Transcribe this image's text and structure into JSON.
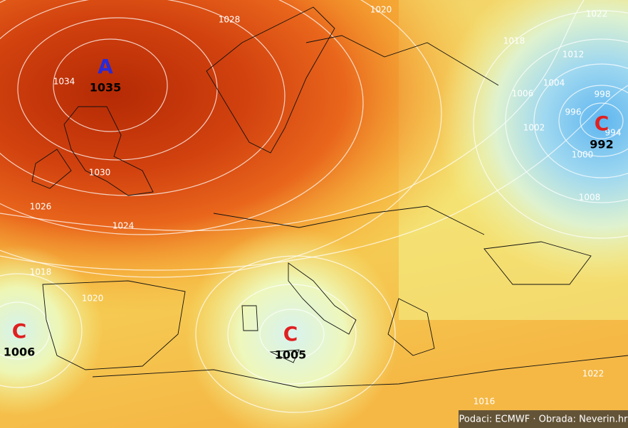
{
  "pressure_centers": [
    {
      "symbol": "A",
      "pressure": "1035"
    },
    {
      "symbol": "C",
      "pressure": "992"
    },
    {
      "symbol": "C",
      "pressure": "1006"
    },
    {
      "symbol": "C",
      "pressure": "1005"
    }
  ],
  "isobar_labels": [
    "1028",
    "1020",
    "1022",
    "1018",
    "1034",
    "1030",
    "1026",
    "1024",
    "1018",
    "1012",
    "1006",
    "1004",
    "998",
    "996",
    "994",
    "1002",
    "1000",
    "1008",
    "1022",
    "1016",
    "1020"
  ],
  "credit": "Podaci: ECMWF · Obrada: Neverin.hr"
}
